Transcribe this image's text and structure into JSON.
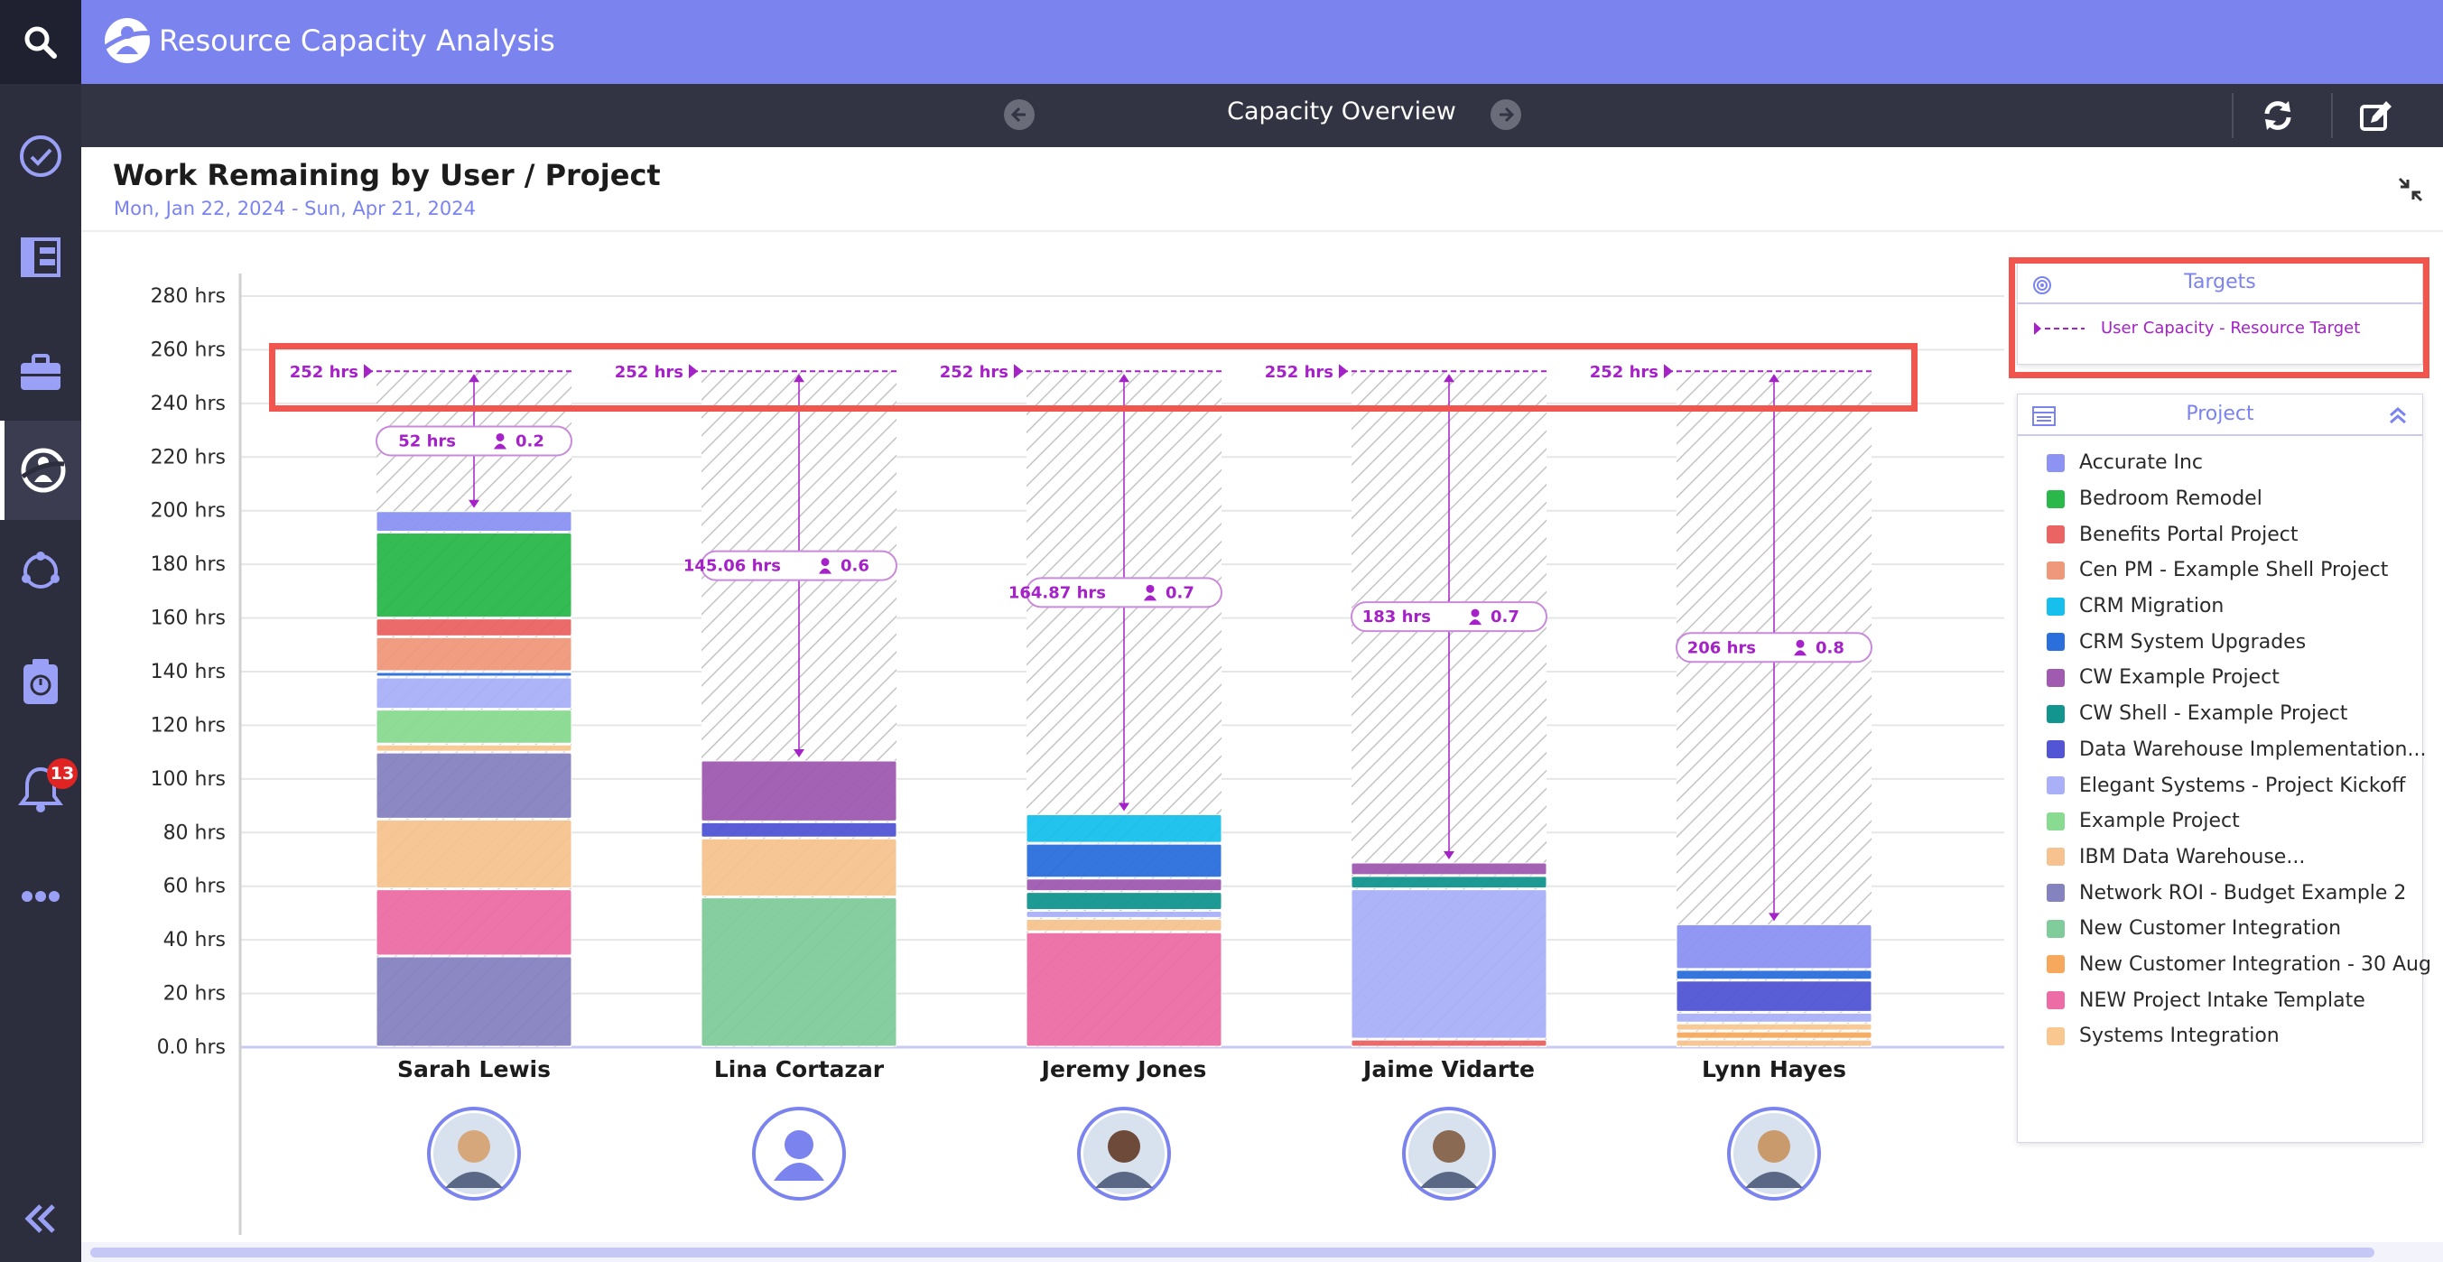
{
  "app": {
    "title": "Resource Capacity Analysis",
    "notifications_count": "13"
  },
  "subheader": {
    "title": "Capacity Overview"
  },
  "panel": {
    "title": "Work Remaining by User / Project",
    "date_range": "Mon, Jan 22, 2024  -  Sun, Apr 21, 2024"
  },
  "legend": {
    "targets_title": "Targets",
    "target_item": "User Capacity - Resource Target",
    "project_title": "Project",
    "projects": [
      {
        "name": "Accurate Inc",
        "color": "#8c93f3"
      },
      {
        "name": "Bedroom Remodel",
        "color": "#2ab84a"
      },
      {
        "name": "Benefits Portal Project",
        "color": "#ea6464"
      },
      {
        "name": "Cen PM - Example Shell Project",
        "color": "#f0987c"
      },
      {
        "name": "CRM Migration",
        "color": "#17c0ec"
      },
      {
        "name": "CRM System Upgrades",
        "color": "#2a6fdc"
      },
      {
        "name": "CW Example Project",
        "color": "#a05ab0"
      },
      {
        "name": "CW Shell - Example Project",
        "color": "#13958f"
      },
      {
        "name": "Data Warehouse Implementation...",
        "color": "#5256d4"
      },
      {
        "name": "Elegant Systems - Project Kickoff",
        "color": "#aab0f8"
      },
      {
        "name": "Example Project",
        "color": "#8adb92"
      },
      {
        "name": "IBM Data Warehouse...",
        "color": "#f6c390"
      },
      {
        "name": "Network ROI - Budget Example 2",
        "color": "#8582c0"
      },
      {
        "name": "New Customer Integration",
        "color": "#80cc9a"
      },
      {
        "name": "New Customer Integration - 30 Aug",
        "color": "#f6a95c"
      },
      {
        "name": "NEW Project Intake Template",
        "color": "#ec6da5"
      },
      {
        "name": "Systems Integration",
        "color": "#f8c890"
      }
    ]
  },
  "chart_data": {
    "type": "bar",
    "stacked": true,
    "ylim": [
      0,
      280
    ],
    "yticks": [
      "0.0 hrs",
      "20 hrs",
      "40 hrs",
      "60 hrs",
      "80 hrs",
      "100 hrs",
      "120 hrs",
      "140 hrs",
      "160 hrs",
      "180 hrs",
      "200 hrs",
      "220 hrs",
      "240 hrs",
      "260 hrs",
      "280 hrs"
    ],
    "categories": [
      "Sarah Lewis",
      "Lina Cortazar",
      "Jeremy Jones",
      "Jaime Vidarte",
      "Lynn Hayes"
    ],
    "target": {
      "name": "User Capacity - Resource Target",
      "values": [
        252,
        252,
        252,
        252,
        252
      ],
      "labels": [
        "252 hrs",
        "252 hrs",
        "252 hrs",
        "252 hrs",
        "252 hrs"
      ]
    },
    "remaining": [
      {
        "hrs": "52 hrs",
        "fte": "0.2"
      },
      {
        "hrs": "145.06 hrs",
        "fte": "0.6"
      },
      {
        "hrs": "164.87 hrs",
        "fte": "0.7"
      },
      {
        "hrs": "183 hrs",
        "fte": "0.7"
      },
      {
        "hrs": "206 hrs",
        "fte": "0.8"
      }
    ],
    "stacks": [
      [
        {
          "project": "Network ROI - Budget Example 2",
          "value": 34
        },
        {
          "project": "NEW Project Intake Template",
          "value": 25
        },
        {
          "project": "IBM Data Warehouse...",
          "value": 26
        },
        {
          "project": "Network ROI - Budget Example 2",
          "value": 25
        },
        {
          "project": "Systems Integration",
          "value": 3
        },
        {
          "project": "Example Project",
          "value": 13
        },
        {
          "project": "Elegant Systems - Project Kickoff",
          "value": 12
        },
        {
          "project": "CRM System Upgrades",
          "value": 2
        },
        {
          "project": "Cen PM - Example Shell Project",
          "value": 13
        },
        {
          "project": "Benefits Portal Project",
          "value": 7
        },
        {
          "project": "Bedroom Remodel",
          "value": 32
        },
        {
          "project": "Accurate Inc",
          "value": 8
        }
      ],
      [
        {
          "project": "New Customer Integration",
          "value": 56
        },
        {
          "project": "IBM Data Warehouse...",
          "value": 22
        },
        {
          "project": "Data Warehouse Implementation...",
          "value": 6
        },
        {
          "project": "CW Example Project",
          "value": 23
        }
      ],
      [
        {
          "project": "NEW Project Intake Template",
          "value": 43
        },
        {
          "project": "IBM Data Warehouse...",
          "value": 5
        },
        {
          "project": "Elegant Systems - Project Kickoff",
          "value": 3
        },
        {
          "project": "CW Shell - Example Project",
          "value": 7
        },
        {
          "project": "CW Example Project",
          "value": 5
        },
        {
          "project": "CRM System Upgrades",
          "value": 13
        },
        {
          "project": "CRM Migration",
          "value": 11
        }
      ],
      [
        {
          "project": "Benefits Portal Project",
          "value": 3
        },
        {
          "project": "Elegant Systems - Project Kickoff",
          "value": 56
        },
        {
          "project": "CW Shell - Example Project",
          "value": 5
        },
        {
          "project": "CW Example Project",
          "value": 5
        }
      ],
      [
        {
          "project": "IBM Data Warehouse...",
          "value": 3
        },
        {
          "project": "New Customer Integration - 30 Aug",
          "value": 3
        },
        {
          "project": "Systems Integration",
          "value": 3
        },
        {
          "project": "Elegant Systems - Project Kickoff",
          "value": 4
        },
        {
          "project": "Data Warehouse Implementation...",
          "value": 12
        },
        {
          "project": "CRM System Upgrades",
          "value": 4
        },
        {
          "project": "Accurate Inc",
          "value": 17
        }
      ]
    ],
    "avatars": [
      "photo",
      "placeholder",
      "photo",
      "photo",
      "photo"
    ],
    "avatar_colors": [
      "#d7a77c",
      "#7b83ef",
      "#6e4a3a",
      "#8a6a52",
      "#c89a6c"
    ]
  }
}
